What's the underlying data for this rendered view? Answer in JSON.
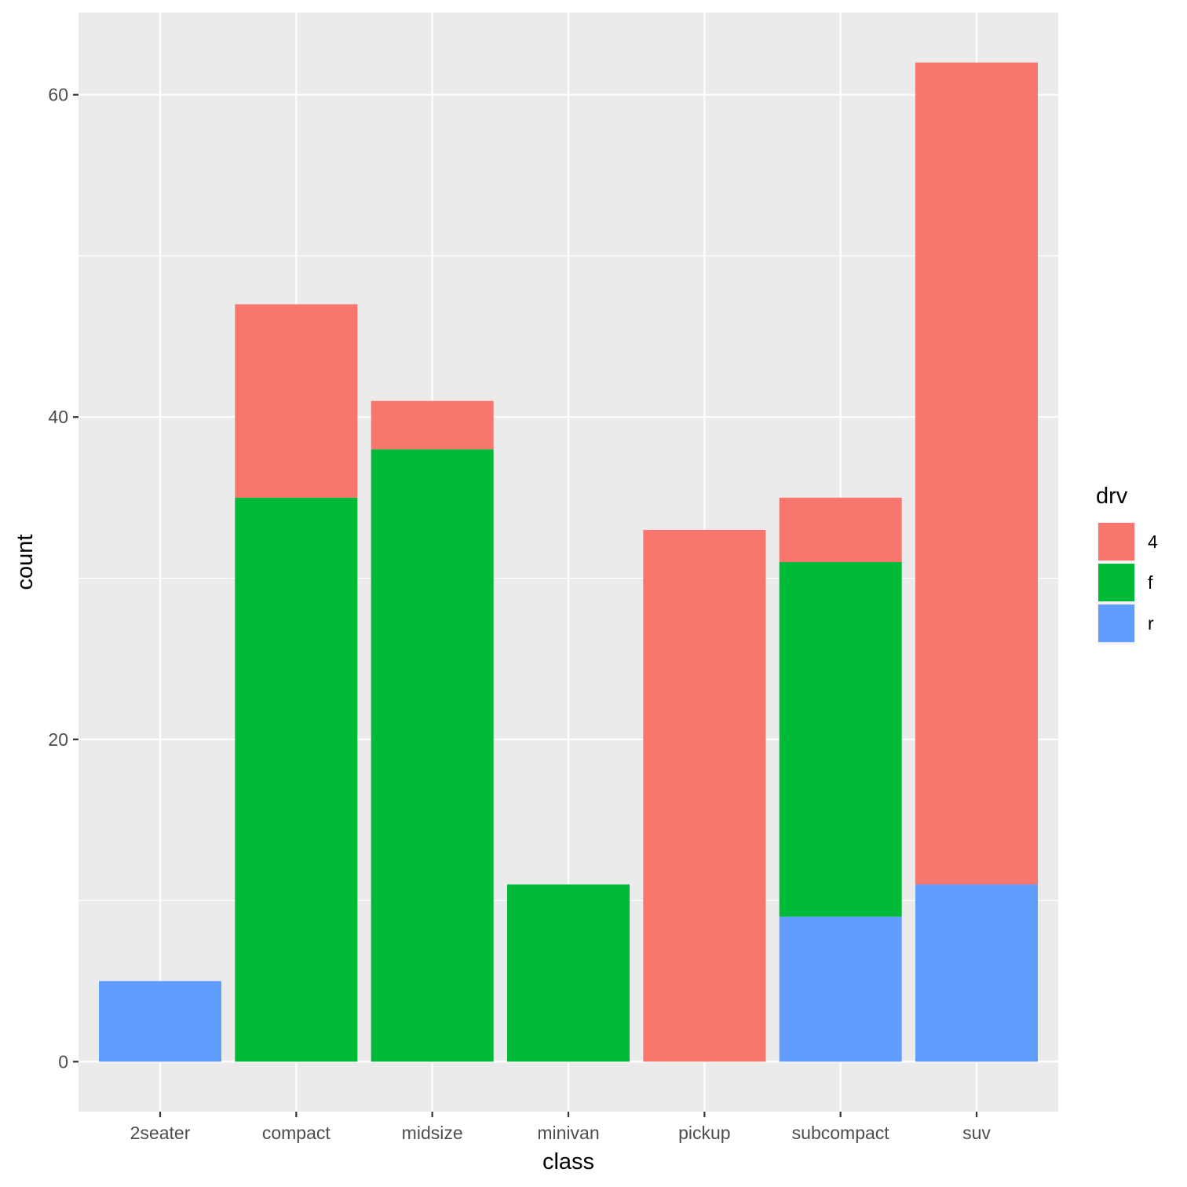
{
  "chart_data": {
    "type": "bar",
    "stacked": true,
    "title": "",
    "xlabel": "class",
    "ylabel": "count",
    "categories": [
      "2seater",
      "compact",
      "midsize",
      "minivan",
      "pickup",
      "subcompact",
      "suv"
    ],
    "series": [
      {
        "name": "4",
        "color": "#F8766D",
        "values": [
          0,
          12,
          3,
          0,
          33,
          4,
          51
        ]
      },
      {
        "name": "f",
        "color": "#00BA38",
        "values": [
          0,
          35,
          38,
          11,
          0,
          22,
          0
        ]
      },
      {
        "name": "r",
        "color": "#619CFF",
        "values": [
          5,
          0,
          0,
          0,
          0,
          9,
          11
        ]
      }
    ],
    "stack_order": [
      "r",
      "f",
      "4"
    ],
    "ylim": [
      -3.1,
      65.1
    ],
    "yticks": [
      0,
      20,
      40,
      60
    ],
    "grid": true,
    "legend": {
      "title": "drv",
      "position": "right",
      "entries": [
        "4",
        "f",
        "r"
      ]
    },
    "colors": {
      "panel_bg": "#EBEBEB",
      "grid": "#FFFFFF",
      "tick_text": "#4D4D4D",
      "tick_mark": "#333333"
    }
  }
}
